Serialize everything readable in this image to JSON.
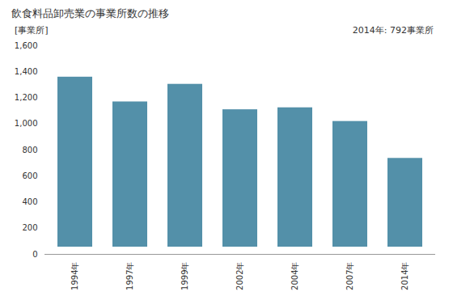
{
  "chart_data": {
    "type": "bar",
    "title": "飲食料品卸売業の事業所数の推移",
    "y_label": "[事業所]",
    "annotation": "2014年: 792事業所",
    "categories": [
      "1994年",
      "1997年",
      "1999年",
      "2002年",
      "2004年",
      "2007年",
      "2014年"
    ],
    "values": [
      1415,
      1225,
      1360,
      1165,
      1180,
      1075,
      792
    ],
    "color": "#5390a9",
    "ylim": [
      0,
      1600
    ],
    "yticks": [
      0,
      200,
      400,
      600,
      800,
      {
        "value": 1000,
        "label": "1,000"
      },
      {
        "value": 1200,
        "label": "1,200"
      },
      {
        "value": 1400,
        "label": "1,400"
      },
      {
        "value": 1600,
        "label": "1,600"
      }
    ],
    "grid": false
  }
}
